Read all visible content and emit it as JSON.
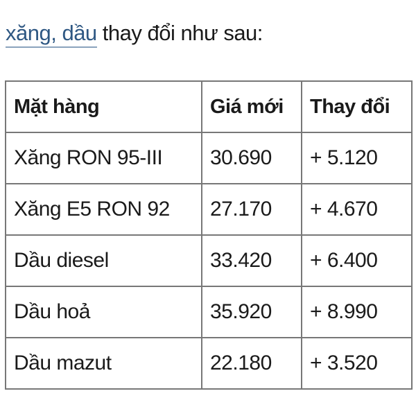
{
  "intro": {
    "link_text": "xăng, dầu",
    "rest_text": " thay đổi như sau:"
  },
  "table": {
    "headers": [
      "Mặt hàng",
      "Giá mới",
      "Thay đổi"
    ],
    "rows": [
      [
        "Xăng RON 95-III",
        "30.690",
        "+ 5.120"
      ],
      [
        "Xăng E5 RON 92",
        "27.170",
        "+ 4.670"
      ],
      [
        "Dầu diesel",
        "33.420",
        "+ 6.400"
      ],
      [
        "Dầu hoả",
        "35.920",
        "+ 8.990"
      ],
      [
        "Dầu mazut",
        "22.180",
        "+ 3.520"
      ]
    ]
  },
  "colors": {
    "link": "#2f5883",
    "border": "#777777"
  }
}
